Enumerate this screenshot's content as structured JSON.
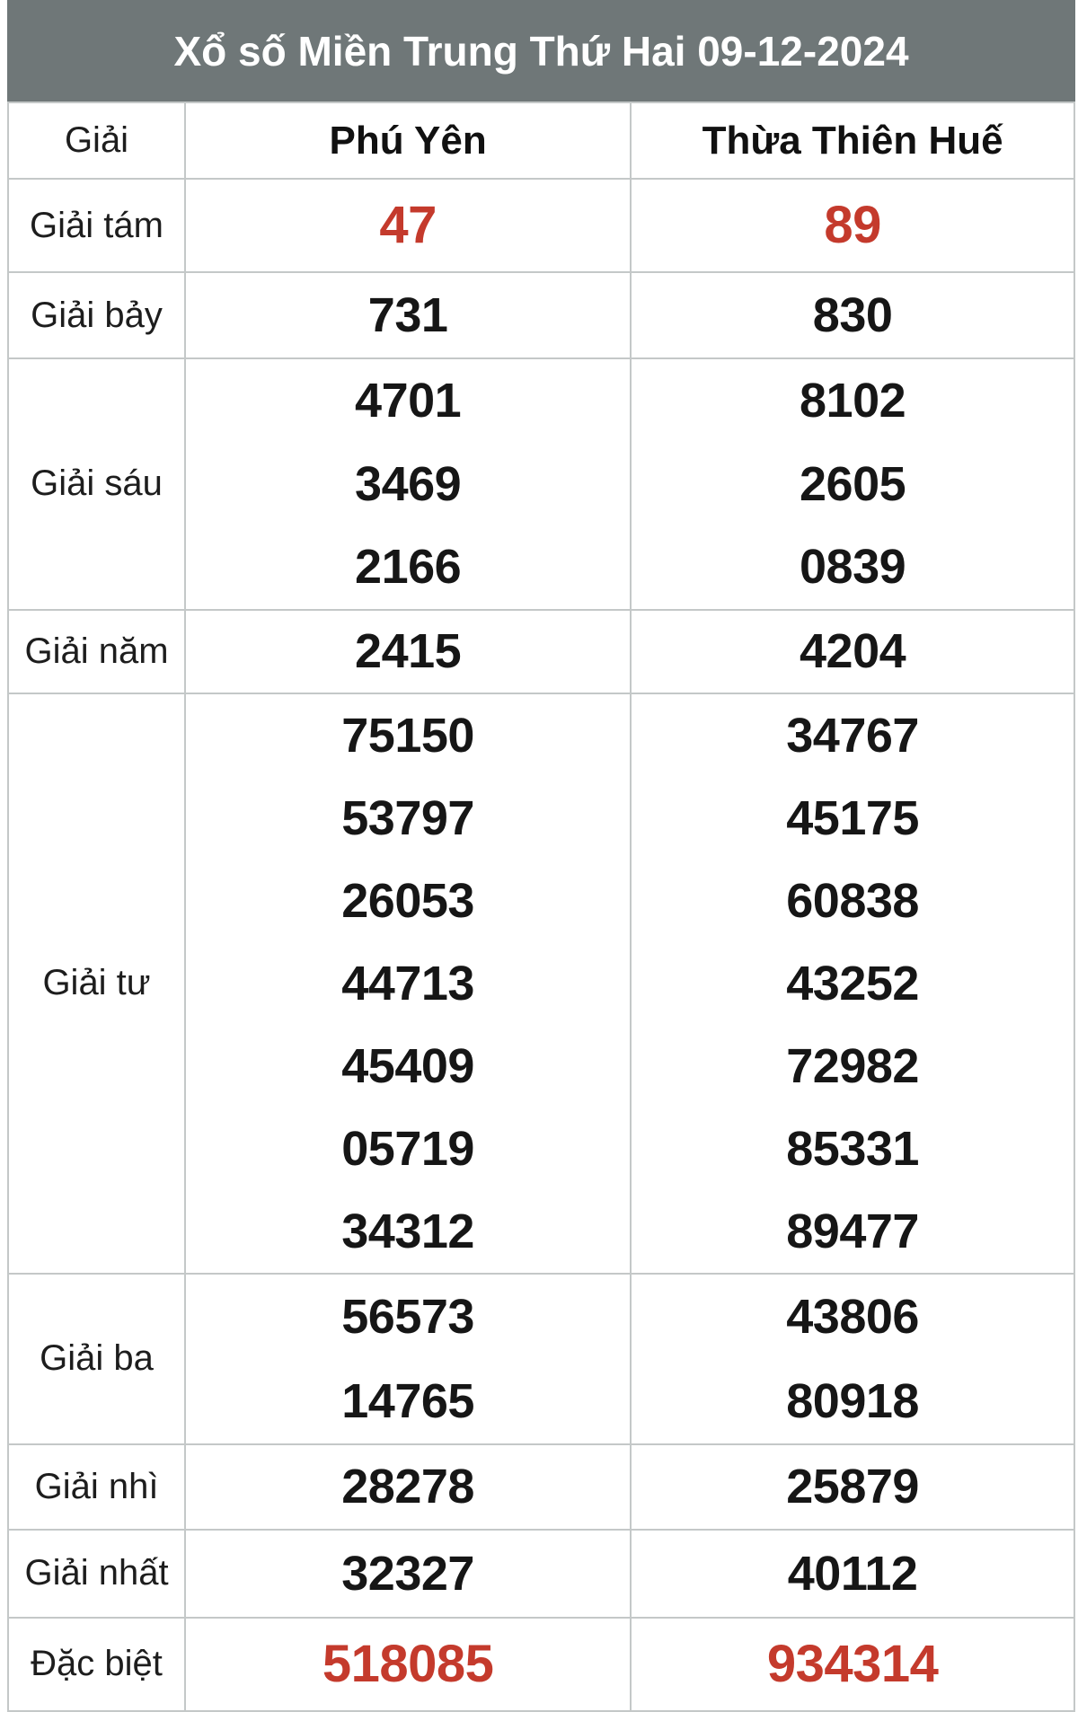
{
  "title": "Xổ số Miền Trung Thứ Hai 09-12-2024",
  "columns": {
    "prize": "Giải",
    "province1": "Phú Yên",
    "province2": "Thừa Thiên Huế"
  },
  "rows": [
    {
      "label": "Giải tám",
      "highlight": true,
      "phu_yen": [
        "47"
      ],
      "thua_thien_hue": [
        "89"
      ]
    },
    {
      "label": "Giải bảy",
      "highlight": false,
      "phu_yen": [
        "731"
      ],
      "thua_thien_hue": [
        "830"
      ]
    },
    {
      "label": "Giải sáu",
      "highlight": false,
      "phu_yen": [
        "4701",
        "3469",
        "2166"
      ],
      "thua_thien_hue": [
        "8102",
        "2605",
        "0839"
      ]
    },
    {
      "label": "Giải năm",
      "highlight": false,
      "phu_yen": [
        "2415"
      ],
      "thua_thien_hue": [
        "4204"
      ]
    },
    {
      "label": "Giải tư",
      "highlight": false,
      "phu_yen": [
        "75150",
        "53797",
        "26053",
        "44713",
        "45409",
        "05719",
        "34312"
      ],
      "thua_thien_hue": [
        "34767",
        "45175",
        "60838",
        "43252",
        "72982",
        "85331",
        "89477"
      ]
    },
    {
      "label": "Giải ba",
      "highlight": false,
      "phu_yen": [
        "56573",
        "14765"
      ],
      "thua_thien_hue": [
        "43806",
        "80918"
      ]
    },
    {
      "label": "Giải nhì",
      "highlight": false,
      "phu_yen": [
        "28278"
      ],
      "thua_thien_hue": [
        "25879"
      ]
    },
    {
      "label": "Giải nhất",
      "highlight": false,
      "phu_yen": [
        "32327"
      ],
      "thua_thien_hue": [
        "40112"
      ]
    },
    {
      "label": "Đặc biệt",
      "highlight": true,
      "phu_yen": [
        "518085"
      ],
      "thua_thien_hue": [
        "934314"
      ]
    }
  ],
  "colors": {
    "header_bg": "#6f7778",
    "highlight_red": "#c43a2c",
    "number_black": "#161616",
    "border": "#c4c8c8"
  }
}
